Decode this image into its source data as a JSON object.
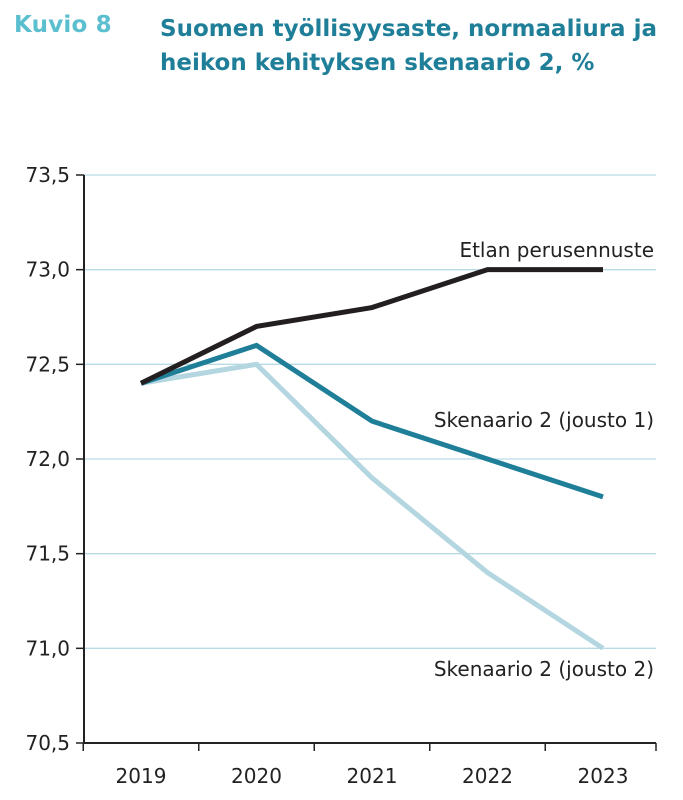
{
  "figure": {
    "label": "Kuvio 8",
    "title": "Suomen työllisyysaste, normaaliura ja heikon kehityksen skenaario 2, %"
  },
  "colors": {
    "kuvio_label": "#5bbfcf",
    "title": "#1f7f99"
  },
  "chart_data": {
    "type": "line",
    "title": "Suomen työllisyysaste, normaaliura ja heikon kehityksen skenaario 2, %",
    "xlabel": "",
    "ylabel": "",
    "x": [
      "2019",
      "2020",
      "2021",
      "2022",
      "2023"
    ],
    "ylim": [
      70.5,
      73.5
    ],
    "yticks": [
      "73,5",
      "73,0",
      "72,5",
      "72,0",
      "71,5",
      "71,0",
      "70,5"
    ],
    "ytick_values": [
      73.5,
      73.0,
      72.5,
      72.0,
      71.5,
      71.0,
      70.5
    ],
    "grid": true,
    "legend": "inline labels",
    "series": [
      {
        "name": "Etlan perusennuste",
        "values": [
          72.4,
          72.7,
          72.8,
          73.0,
          73.0
        ],
        "color": "#231f20"
      },
      {
        "name": "Skenaario 2 (jousto 1)",
        "values": [
          72.4,
          72.6,
          72.2,
          72.0,
          71.8
        ],
        "color": "#1f7f99"
      },
      {
        "name": "Skenaario 2 (jousto 2)",
        "values": [
          72.4,
          72.5,
          71.9,
          71.4,
          71.0
        ],
        "color": "#b3d6e0"
      }
    ]
  }
}
